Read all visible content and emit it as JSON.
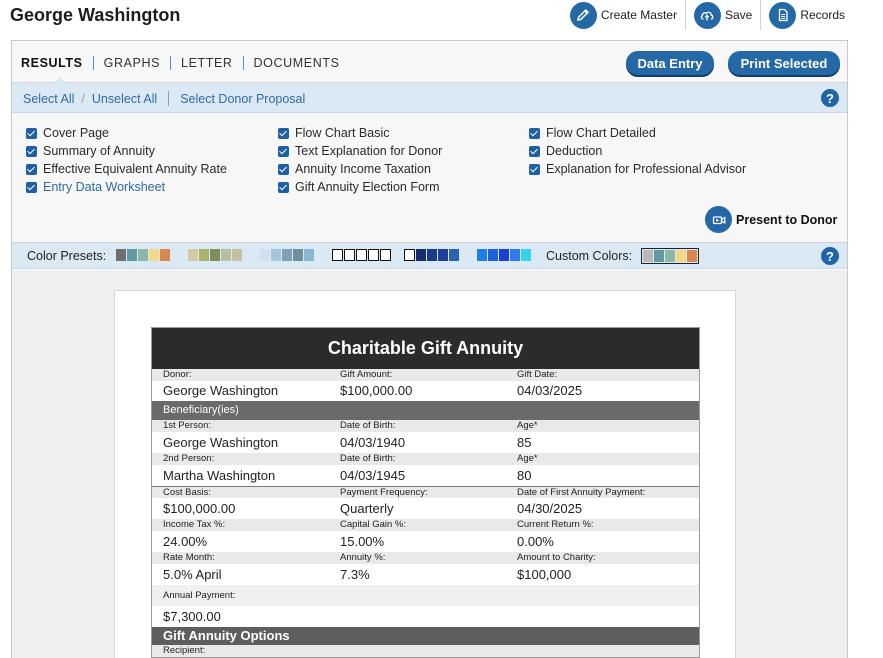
{
  "header": {
    "title": "George Washington",
    "actions": [
      {
        "label": "Create Master",
        "icon": "pencil-icon"
      },
      {
        "label": "Save",
        "icon": "cloud-upload-icon"
      },
      {
        "label": "Records",
        "icon": "document-icon"
      }
    ]
  },
  "tabs": [
    "RESULTS",
    "GRAPHS",
    "LETTER",
    "DOCUMENTS"
  ],
  "active_tab": "RESULTS",
  "buttons": {
    "data_entry": "Data Entry",
    "print_selected": "Print Selected"
  },
  "selection": {
    "select_all": "Select All",
    "unselect_all": "Unselect All",
    "separator": "/",
    "select_donor_proposal": "Select Donor Proposal"
  },
  "help": "?",
  "checklist": {
    "col1": [
      {
        "label": "Cover Page",
        "checked": true
      },
      {
        "label": "Summary of Annuity",
        "checked": true
      },
      {
        "label": "Effective Equivalent Annuity Rate",
        "checked": true
      },
      {
        "label": "Entry Data Worksheet",
        "checked": true
      }
    ],
    "col2": [
      {
        "label": "Flow Chart Basic",
        "checked": true
      },
      {
        "label": "Text Explanation for Donor",
        "checked": true
      },
      {
        "label": "Annuity Income Taxation",
        "checked": true
      },
      {
        "label": "Gift Annuity Election Form",
        "checked": true
      }
    ],
    "col3": [
      {
        "label": "Flow Chart Detailed",
        "checked": true
      },
      {
        "label": "Deduction",
        "checked": true
      },
      {
        "label": "Explanation for Professional Advisor",
        "checked": true
      }
    ]
  },
  "present_label": "Present to Donor",
  "color_presets": {
    "label": "Color Presets:",
    "custom_label": "Custom Colors:",
    "sets": [
      [
        "#6f6f6f",
        "#5e9aa0",
        "#8cb7a9",
        "#f2d98a",
        "#d9874f"
      ],
      [
        "#d2c9a6",
        "#a9b46a",
        "#7d8f5a",
        "#b7bfa0",
        "#c2c2a0"
      ],
      [
        "#cfe0ee",
        "#a6c4dc",
        "#7da1b9",
        "#6f8f9f",
        "#8ab6cf"
      ],
      [
        "#ffffff",
        "#ffffff",
        "#ffffff",
        "#ffffff",
        "#ffffff"
      ],
      [
        "#ffffff",
        "#1a2a6e",
        "#1c3a8a",
        "#203f9c",
        "#2a62b4"
      ],
      [
        "#1e7fe6",
        "#1a63dd",
        "#1c3ed8",
        "#2f7bee",
        "#34d3f0"
      ]
    ],
    "custom": [
      "#b8b8b8",
      "#5e9aa0",
      "#8cb7a9",
      "#f2d98a",
      "#d9874f"
    ]
  },
  "report": {
    "title": "Charitable Gift Annuity",
    "donor": {
      "label": "Donor:",
      "value": "George Washington"
    },
    "gift_amount": {
      "label": "Gift Amount:",
      "value": "$100,000.00"
    },
    "gift_date": {
      "label": "Gift Date:",
      "value": "04/03/2025"
    },
    "beneficiaries_header": "Beneficiary(ies)",
    "person1": {
      "label": "1st Person:",
      "value": "George Washington",
      "dob_label": "Date of Birth:",
      "dob": "04/03/1940",
      "age_label": "Age*",
      "age": "85"
    },
    "person2": {
      "label": "2nd Person:",
      "value": "Martha Washington",
      "dob_label": "Date of Birth:",
      "dob": "04/03/1945",
      "age_label": "Age*",
      "age": "80"
    },
    "cost_basis": {
      "label": "Cost Basis:",
      "value": "$100,000.00"
    },
    "payment_frequency": {
      "label": "Payment Frequency:",
      "value": "Quarterly"
    },
    "first_payment": {
      "label": "Date of First Annuity Payment:",
      "value": "04/30/2025"
    },
    "income_tax": {
      "label": "Income Tax %:",
      "value": "24.00%"
    },
    "capital_gain": {
      "label": "Capital Gain %:",
      "value": "15.00%"
    },
    "current_return": {
      "label": "Current Return %:",
      "value": "0.00%"
    },
    "rate_month": {
      "label": "Rate Month:",
      "value": "5.0% April"
    },
    "annuity_pct": {
      "label": "Annuity %:",
      "value": "7.3%"
    },
    "amount_to_charity": {
      "label": "Amount to Charity:",
      "value": "$100,000"
    },
    "annual_payment": {
      "label": "Annual Payment:",
      "value": "$7,300.00"
    },
    "options_header": "Gift Annuity Options",
    "recipient": {
      "label": "Recipient:"
    }
  }
}
